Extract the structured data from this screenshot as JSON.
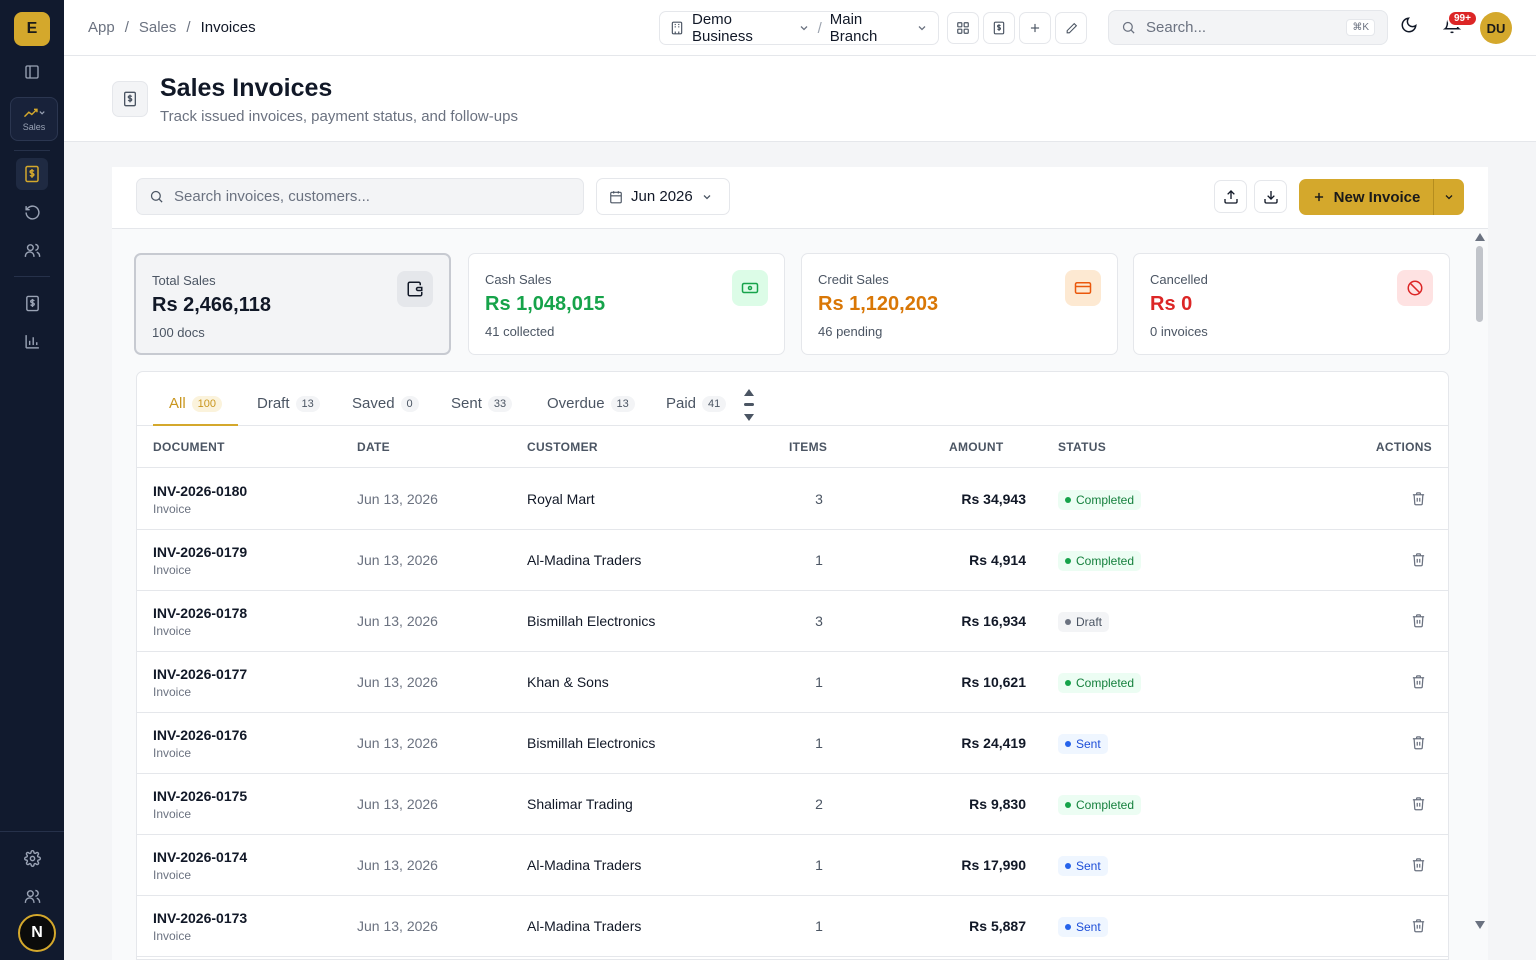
{
  "sidebar": {
    "logo_letter": "E",
    "module_label": "Sales",
    "user_initial": "N"
  },
  "topbar": {
    "breadcrumb": [
      "App",
      "Sales",
      "Invoices"
    ],
    "breadcrumb_sep": "/",
    "business": "Demo Business",
    "branch": "Main Branch",
    "branch_sep": "/",
    "search_placeholder": "Search...",
    "search_shortcut": "⌘K",
    "notifications_count": "99+",
    "user_initials": "DU"
  },
  "header": {
    "title": "Sales Invoices",
    "subtitle": "Track issued invoices, payment status, and follow-ups"
  },
  "toolbar": {
    "search_placeholder": "Search invoices, customers...",
    "period": "Jun 2026",
    "new_button_label": "New Invoice"
  },
  "stats": [
    {
      "label": "Total Sales",
      "value": "Rs 2,466,118",
      "sub": "100 docs",
      "color": "#111827",
      "icon": "wallet-icon",
      "icon_bg": "#e5e7eb",
      "icon_color": "#111827"
    },
    {
      "label": "Cash Sales",
      "value": "Rs 1,048,015",
      "sub": "41 collected",
      "color": "#16a34a",
      "icon": "banknote-icon",
      "icon_bg": "#dcfce7",
      "icon_color": "#16a34a"
    },
    {
      "label": "Credit Sales",
      "value": "Rs 1,120,203",
      "sub": "46 pending",
      "color": "#d97706",
      "icon": "credit-card-icon",
      "icon_bg": "#fde9d2",
      "icon_color": "#ea580c"
    },
    {
      "label": "Cancelled",
      "value": "Rs 0",
      "sub": "0 invoices",
      "color": "#dc2626",
      "icon": "ban-icon",
      "icon_bg": "#fee2e2",
      "icon_color": "#dc2626"
    }
  ],
  "tabs": [
    {
      "label": "All",
      "count": "100"
    },
    {
      "label": "Draft",
      "count": "13"
    },
    {
      "label": "Saved",
      "count": "0"
    },
    {
      "label": "Sent",
      "count": "33"
    },
    {
      "label": "Overdue",
      "count": "13"
    },
    {
      "label": "Paid",
      "count": "41"
    }
  ],
  "table": {
    "columns": [
      "DOCUMENT",
      "DATE",
      "CUSTOMER",
      "ITEMS",
      "AMOUNT",
      "STATUS",
      "ACTIONS"
    ],
    "rows": [
      {
        "doc": "INV-2026-0180",
        "type": "Invoice",
        "date": "Jun 13, 2026",
        "customer": "Royal Mart",
        "items": "3",
        "amount": "Rs 34,943",
        "status": "Completed"
      },
      {
        "doc": "INV-2026-0179",
        "type": "Invoice",
        "date": "Jun 13, 2026",
        "customer": "Al-Madina Traders",
        "items": "1",
        "amount": "Rs 4,914",
        "status": "Completed"
      },
      {
        "doc": "INV-2026-0178",
        "type": "Invoice",
        "date": "Jun 13, 2026",
        "customer": "Bismillah Electronics",
        "items": "3",
        "amount": "Rs 16,934",
        "status": "Draft"
      },
      {
        "doc": "INV-2026-0177",
        "type": "Invoice",
        "date": "Jun 13, 2026",
        "customer": "Khan & Sons",
        "items": "1",
        "amount": "Rs 10,621",
        "status": "Completed"
      },
      {
        "doc": "INV-2026-0176",
        "type": "Invoice",
        "date": "Jun 13, 2026",
        "customer": "Bismillah Electronics",
        "items": "1",
        "amount": "Rs 24,419",
        "status": "Sent"
      },
      {
        "doc": "INV-2026-0175",
        "type": "Invoice",
        "date": "Jun 13, 2026",
        "customer": "Shalimar Trading",
        "items": "2",
        "amount": "Rs 9,830",
        "status": "Completed"
      },
      {
        "doc": "INV-2026-0174",
        "type": "Invoice",
        "date": "Jun 13, 2026",
        "customer": "Al-Madina Traders",
        "items": "1",
        "amount": "Rs 17,990",
        "status": "Sent"
      },
      {
        "doc": "INV-2026-0173",
        "type": "Invoice",
        "date": "Jun 13, 2026",
        "customer": "Al-Madina Traders",
        "items": "1",
        "amount": "Rs 5,887",
        "status": "Sent"
      }
    ]
  },
  "colors": {
    "accent": "#d4a82c",
    "sidebar": "#111a2e"
  }
}
